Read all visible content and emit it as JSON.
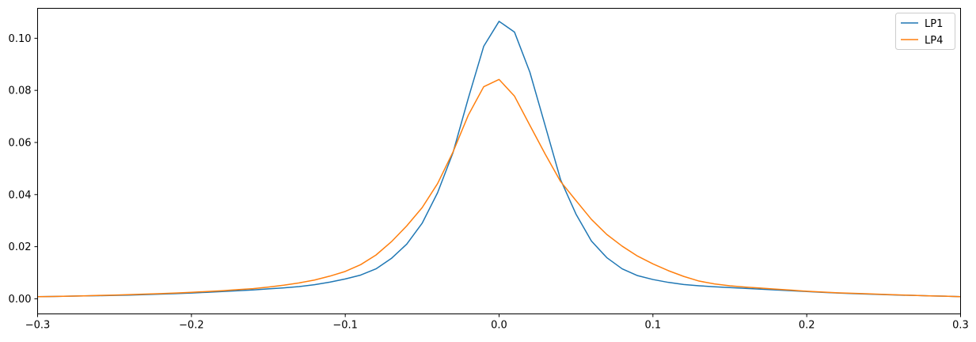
{
  "chart_data": {
    "type": "line",
    "title": "",
    "xlabel": "",
    "ylabel": "",
    "xlim": [
      -0.3,
      0.3
    ],
    "ylim": [
      -0.0058,
      0.1115
    ],
    "grid": false,
    "legend_position": "top-right",
    "x_ticks": [
      -0.3,
      -0.2,
      -0.1,
      0.0,
      0.1,
      0.2,
      0.3
    ],
    "x_tick_labels": [
      "−0.3",
      "−0.2",
      "−0.1",
      "0.0",
      "0.1",
      "0.2",
      "0.3"
    ],
    "y_ticks": [
      0.0,
      0.02,
      0.04,
      0.06,
      0.08,
      0.1
    ],
    "y_tick_labels": [
      "0.00",
      "0.02",
      "0.04",
      "0.06",
      "0.08",
      "0.10"
    ],
    "x_start": -0.3,
    "x_step": 0.01,
    "series": [
      {
        "name": "LP1",
        "color": "#1f77b4",
        "values": [
          0.0008,
          0.0009,
          0.001,
          0.0011,
          0.0012,
          0.0013,
          0.0014,
          0.0016,
          0.0018,
          0.002,
          0.0022,
          0.0025,
          0.0028,
          0.0031,
          0.0034,
          0.0038,
          0.0042,
          0.0047,
          0.0054,
          0.0064,
          0.0076,
          0.0091,
          0.0115,
          0.0155,
          0.021,
          0.029,
          0.0407,
          0.056,
          0.077,
          0.0969,
          0.1065,
          0.1024,
          0.087,
          0.0664,
          0.0457,
          0.0325,
          0.0222,
          0.0158,
          0.0115,
          0.0089,
          0.0074,
          0.0063,
          0.0055,
          0.005,
          0.0046,
          0.0043,
          0.004,
          0.0037,
          0.0034,
          0.0031,
          0.0028,
          0.0025,
          0.0022,
          0.002,
          0.0018,
          0.0016,
          0.0014,
          0.0013,
          0.0011,
          0.001,
          0.0008
        ]
      },
      {
        "name": "LP4",
        "color": "#ff7f0e",
        "values": [
          0.0008,
          0.0009,
          0.001,
          0.0011,
          0.0013,
          0.0014,
          0.0016,
          0.0018,
          0.002,
          0.0022,
          0.0025,
          0.0028,
          0.0031,
          0.0035,
          0.0039,
          0.0045,
          0.0052,
          0.0061,
          0.0072,
          0.0087,
          0.0105,
          0.0131,
          0.0168,
          0.0219,
          0.028,
          0.035,
          0.0442,
          0.0563,
          0.0705,
          0.0814,
          0.0842,
          0.0778,
          0.0666,
          0.0555,
          0.045,
          0.0377,
          0.0305,
          0.0247,
          0.0202,
          0.0164,
          0.0134,
          0.0108,
          0.0086,
          0.0068,
          0.0057,
          0.005,
          0.0045,
          0.0041,
          0.0037,
          0.0033,
          0.0029,
          0.0026,
          0.0023,
          0.0021,
          0.0019,
          0.0017,
          0.0015,
          0.0013,
          0.0011,
          0.001,
          0.0008
        ]
      }
    ]
  }
}
